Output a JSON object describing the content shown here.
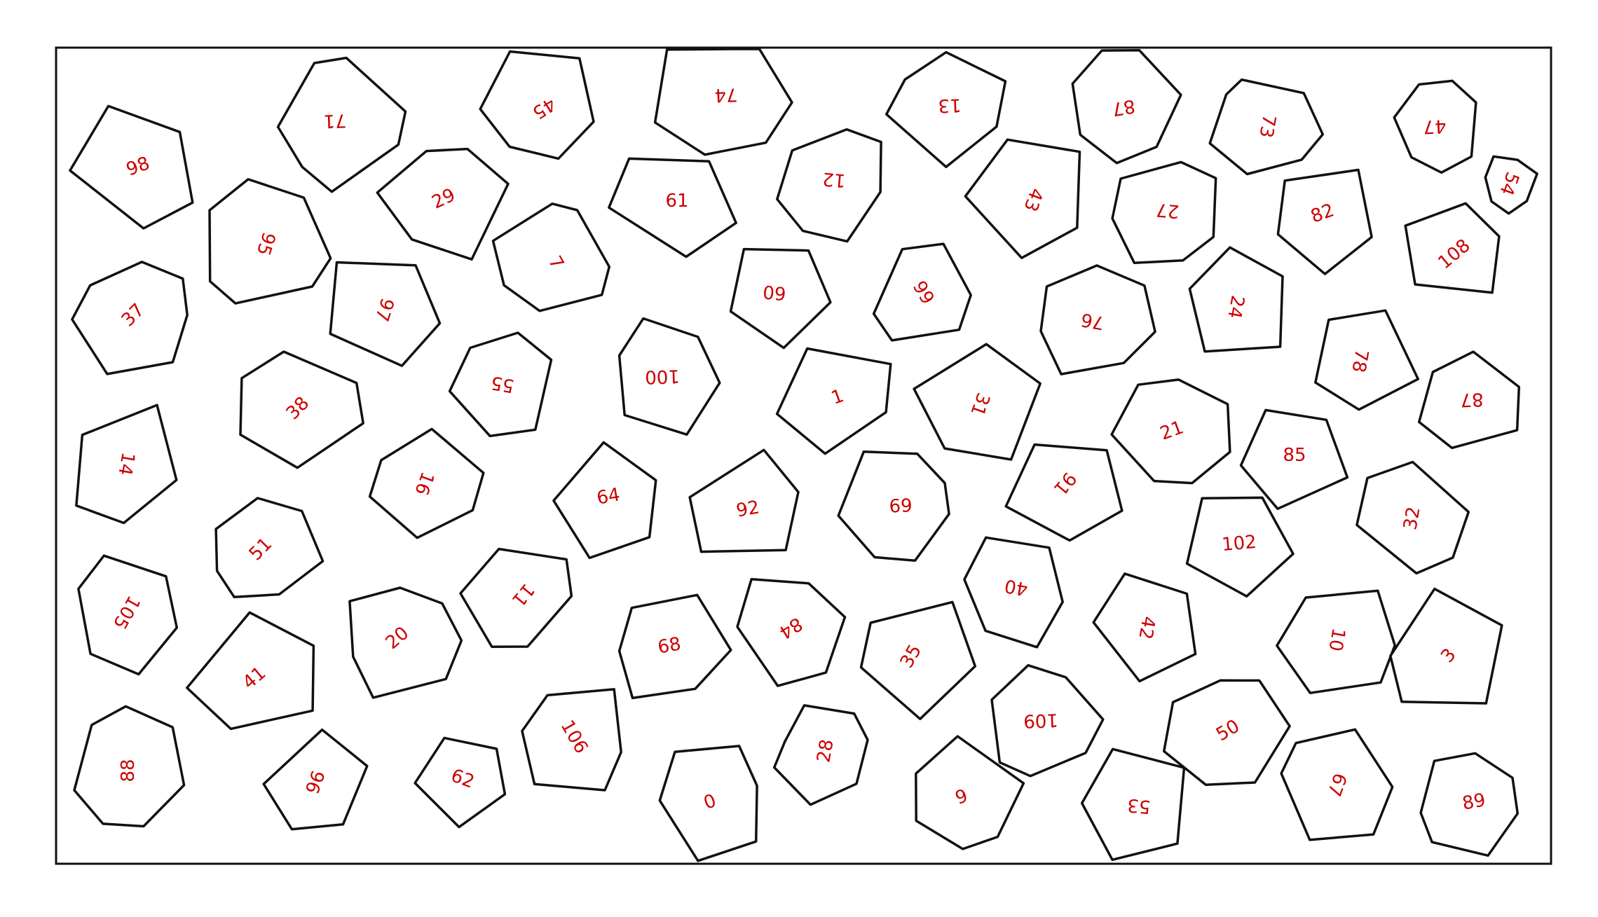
{
  "diagram": {
    "type": "polygon-puzzle",
    "label_color": "#cc0000",
    "stroke_color": "#111111",
    "background": "#ffffff",
    "pieces": [
      {
        "label": "98"
      },
      {
        "label": "71"
      },
      {
        "label": "45"
      },
      {
        "label": "74"
      },
      {
        "label": "13"
      },
      {
        "label": "87"
      },
      {
        "label": "73"
      },
      {
        "label": "47"
      },
      {
        "label": "54"
      },
      {
        "label": "95"
      },
      {
        "label": "29"
      },
      {
        "label": "61"
      },
      {
        "label": "12"
      },
      {
        "label": "43"
      },
      {
        "label": "27"
      },
      {
        "label": "82"
      },
      {
        "label": "108"
      },
      {
        "label": "37"
      },
      {
        "label": "97"
      },
      {
        "label": "7"
      },
      {
        "label": "60"
      },
      {
        "label": "99"
      },
      {
        "label": "76"
      },
      {
        "label": "24"
      },
      {
        "label": "38"
      },
      {
        "label": "55"
      },
      {
        "label": "100"
      },
      {
        "label": "1"
      },
      {
        "label": "31"
      },
      {
        "label": "78"
      },
      {
        "label": "87"
      },
      {
        "label": "14"
      },
      {
        "label": "16"
      },
      {
        "label": "21"
      },
      {
        "label": "85"
      },
      {
        "label": "51"
      },
      {
        "label": "64"
      },
      {
        "label": "92"
      },
      {
        "label": "69"
      },
      {
        "label": "91"
      },
      {
        "label": "32"
      },
      {
        "label": "102"
      },
      {
        "label": "105"
      },
      {
        "label": "11"
      },
      {
        "label": "20"
      },
      {
        "label": "68"
      },
      {
        "label": "84"
      },
      {
        "label": "35"
      },
      {
        "label": "40"
      },
      {
        "label": "42"
      },
      {
        "label": "10"
      },
      {
        "label": "3"
      },
      {
        "label": "41"
      },
      {
        "label": "88"
      },
      {
        "label": "96"
      },
      {
        "label": "62"
      },
      {
        "label": "106"
      },
      {
        "label": "0"
      },
      {
        "label": "28"
      },
      {
        "label": "9"
      },
      {
        "label": "109"
      },
      {
        "label": "53"
      },
      {
        "label": "50"
      },
      {
        "label": "67"
      },
      {
        "label": "89"
      }
    ]
  }
}
